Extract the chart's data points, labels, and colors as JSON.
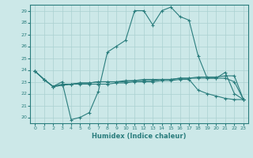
{
  "xlabel": "Humidex (Indice chaleur)",
  "xlim": [
    -0.5,
    23.5
  ],
  "ylim": [
    19.5,
    29.5
  ],
  "yticks": [
    20,
    21,
    22,
    23,
    24,
    25,
    26,
    27,
    28,
    29
  ],
  "xticks": [
    0,
    1,
    2,
    3,
    4,
    5,
    6,
    7,
    8,
    9,
    10,
    11,
    12,
    13,
    14,
    15,
    16,
    17,
    18,
    19,
    20,
    21,
    22,
    23
  ],
  "line_color": "#2a7d7d",
  "bg_color": "#cce8e8",
  "grid_color": "#aad0d0",
  "lines": [
    [
      23.9,
      23.2,
      22.6,
      23.0,
      19.8,
      20.0,
      20.4,
      22.2,
      25.5,
      26.0,
      26.5,
      29.0,
      29.0,
      27.8,
      29.0,
      29.3,
      28.5,
      28.2,
      25.2,
      23.3,
      23.3,
      23.8,
      22.0,
      21.5
    ],
    [
      23.9,
      23.2,
      22.6,
      22.8,
      22.8,
      22.8,
      22.8,
      22.8,
      22.8,
      22.9,
      22.9,
      23.0,
      23.0,
      23.0,
      23.1,
      23.1,
      23.2,
      23.2,
      22.3,
      22.0,
      21.8,
      21.6,
      21.5,
      21.5
    ],
    [
      23.9,
      23.2,
      22.6,
      22.7,
      22.8,
      22.9,
      22.9,
      23.0,
      23.0,
      23.0,
      23.0,
      23.1,
      23.1,
      23.1,
      23.2,
      23.2,
      23.3,
      23.3,
      23.3,
      23.3,
      23.3,
      23.3,
      23.0,
      21.5
    ],
    [
      23.9,
      23.2,
      22.6,
      22.7,
      22.8,
      22.9,
      22.9,
      23.0,
      23.0,
      23.0,
      23.1,
      23.1,
      23.2,
      23.2,
      23.2,
      23.2,
      23.3,
      23.3,
      23.4,
      23.4,
      23.4,
      23.5,
      23.5,
      21.5
    ]
  ]
}
